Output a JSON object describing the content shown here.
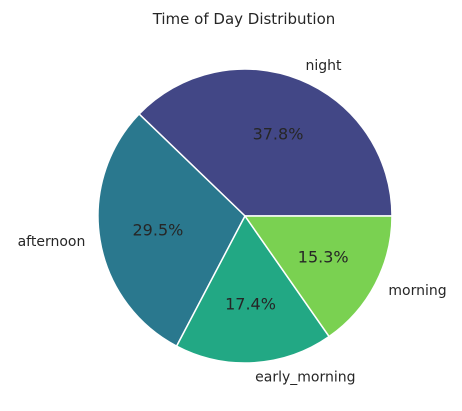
{
  "chart_data": {
    "type": "pie",
    "title": "Time of Day Distribution",
    "categories": [
      "night",
      "afternoon",
      "early_morning",
      "morning"
    ],
    "values": [
      37.8,
      29.5,
      17.4,
      15.3
    ],
    "value_labels": [
      "37.8%",
      "29.5%",
      "17.4%",
      "15.3%"
    ],
    "colors": [
      "#424786",
      "#2a788e",
      "#22a884",
      "#7ad151"
    ],
    "start_angle_deg": 0,
    "direction": "counterclockwise"
  }
}
